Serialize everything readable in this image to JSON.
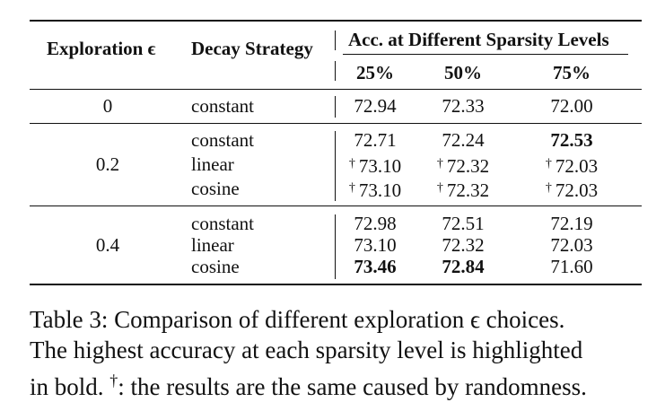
{
  "table": {
    "headers": {
      "exploration": "Exploration ϵ",
      "decay": "Decay Strategy",
      "acc_group": "Acc. at Different Sparsity Levels",
      "levels": [
        "25%",
        "50%",
        "75%"
      ]
    },
    "groups": [
      {
        "exploration": "0",
        "rows": [
          {
            "decay": "constant",
            "values": [
              {
                "marker": "",
                "value": "72.94",
                "bold": false
              },
              {
                "marker": "",
                "value": "72.33",
                "bold": false
              },
              {
                "marker": "",
                "value": "72.00",
                "bold": false
              }
            ]
          }
        ]
      },
      {
        "exploration": "0.2",
        "rows": [
          {
            "decay": "constant",
            "values": [
              {
                "marker": "",
                "value": "72.71",
                "bold": false
              },
              {
                "marker": "",
                "value": "72.24",
                "bold": false
              },
              {
                "marker": "",
                "value": "72.53",
                "bold": true
              }
            ]
          },
          {
            "decay": "linear",
            "values": [
              {
                "marker": "†",
                "value": "73.10",
                "bold": false
              },
              {
                "marker": "†",
                "value": "72.32",
                "bold": false
              },
              {
                "marker": "†",
                "value": "72.03",
                "bold": false
              }
            ]
          },
          {
            "decay": "cosine",
            "values": [
              {
                "marker": "†",
                "value": "73.10",
                "bold": false
              },
              {
                "marker": "†",
                "value": "72.32",
                "bold": false
              },
              {
                "marker": "†",
                "value": "72.03",
                "bold": false
              }
            ]
          }
        ]
      },
      {
        "exploration": "0.4",
        "rows": [
          {
            "decay": "constant",
            "values": [
              {
                "marker": "",
                "value": "72.98",
                "bold": false
              },
              {
                "marker": "",
                "value": "72.51",
                "bold": false
              },
              {
                "marker": "",
                "value": "72.19",
                "bold": false
              }
            ]
          },
          {
            "decay": "linear",
            "values": [
              {
                "marker": "",
                "value": "73.10",
                "bold": false
              },
              {
                "marker": "",
                "value": "72.32",
                "bold": false
              },
              {
                "marker": "",
                "value": "72.03",
                "bold": false
              }
            ]
          },
          {
            "decay": "cosine",
            "values": [
              {
                "marker": "",
                "value": "73.46",
                "bold": true
              },
              {
                "marker": "",
                "value": "72.84",
                "bold": true
              },
              {
                "marker": "",
                "value": "71.60",
                "bold": false
              }
            ]
          }
        ]
      }
    ]
  },
  "caption": {
    "line1": "Table 3:  Comparison of different exploration ϵ choices.",
    "line2": "The highest accuracy at each sparsity level is highlighted",
    "line3_start": "in bold. ",
    "line3_marker": "†",
    "line3_end": ": the results are the same caused by randomness."
  }
}
